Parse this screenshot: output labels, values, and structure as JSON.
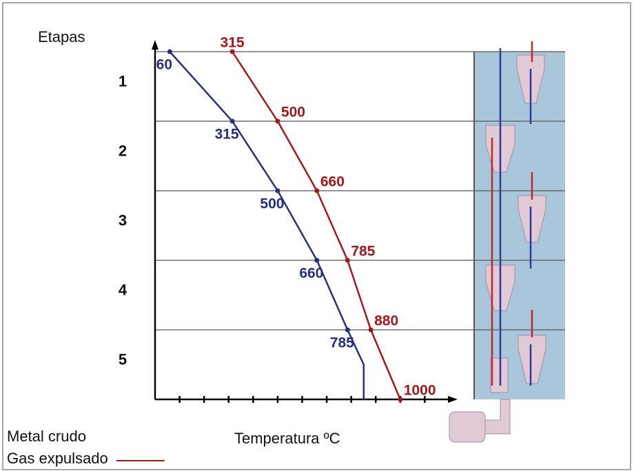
{
  "chart_data": {
    "type": "line",
    "y_axis_label": "Etapas",
    "x_axis_label": "Temperatura ºC",
    "stages": [
      "1",
      "2",
      "3",
      "4",
      "5"
    ],
    "xlim": [
      0,
      1200
    ],
    "xticks": [
      100,
      200,
      300,
      400,
      500,
      600,
      700,
      800,
      900,
      1000,
      1100
    ],
    "ylim": [
      0,
      5
    ],
    "yticks": [
      0,
      1,
      2,
      3,
      4,
      5
    ],
    "grid": true,
    "series": [
      {
        "name": "Metal crudo",
        "color": "#27307f",
        "x": [
          60,
          315,
          500,
          660,
          785,
          851,
          851
        ],
        "y": [
          0,
          1,
          2,
          3,
          4,
          4.5,
          5
        ],
        "value_labels": [
          "60",
          "315",
          "500",
          "660",
          "785",
          null,
          null
        ]
      },
      {
        "name": "Gas expulsado",
        "color": "#a3181b",
        "x": [
          315,
          500,
          660,
          785,
          880,
          1000
        ],
        "y": [
          0,
          1,
          2,
          3,
          4,
          5
        ]
      }
    ]
  }
}
